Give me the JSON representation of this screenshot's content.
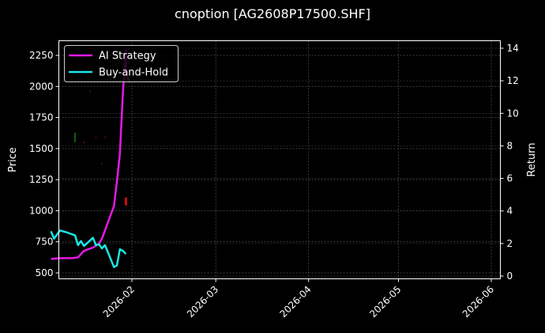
{
  "chart_data": {
    "type": "line",
    "title": "cnoption [AG2608P17500.SHF]",
    "xlabel": "",
    "ylabel_left": "Price",
    "ylabel_right": "Return",
    "x_tick_labels": [
      "2026-02",
      "2026-03",
      "2026-04",
      "2026-05",
      "2026-06"
    ],
    "y_left_ticks": [
      500,
      750,
      1000,
      1250,
      1500,
      1750,
      2000,
      2250
    ],
    "y_right_ticks": [
      0,
      2,
      4,
      6,
      8,
      10,
      12,
      14
    ],
    "ylim_left": [
      460,
      2370
    ],
    "ylim_right": [
      -0.1,
      14.5
    ],
    "grid": true,
    "legend_position": "upper left",
    "legend": [
      "AI Strategy",
      "Buy-and-Hold"
    ],
    "series": [
      {
        "name": "AI Strategy",
        "axis": "right",
        "color": "#e619e6",
        "dates": [
          "2026-01-05",
          "2026-01-08",
          "2026-01-12",
          "2026-01-14",
          "2026-01-16",
          "2026-01-19",
          "2026-01-21",
          "2026-01-22",
          "2026-01-23",
          "2026-01-26",
          "2026-01-27",
          "2026-01-28",
          "2026-01-29",
          "2026-01-30",
          "2026-01-30",
          "2026-01-31"
        ],
        "values": [
          1.05,
          1.1,
          1.1,
          1.15,
          1.55,
          1.75,
          2.0,
          2.3,
          2.8,
          4.3,
          5.8,
          7.5,
          11.3,
          13.9,
          12.5,
          11.9
        ]
      },
      {
        "name": "Buy-and-Hold",
        "axis": "right",
        "color": "#19e6e6",
        "dates": [
          "2026-01-05",
          "2026-01-06",
          "2026-01-08",
          "2026-01-10",
          "2026-01-13",
          "2026-01-14",
          "2026-01-15",
          "2026-01-16",
          "2026-01-19",
          "2026-01-20",
          "2026-01-21",
          "2026-01-22",
          "2026-01-23",
          "2026-01-26",
          "2026-01-27",
          "2026-01-28",
          "2026-01-29",
          "2026-01-30"
        ],
        "values": [
          2.75,
          2.3,
          2.8,
          2.7,
          2.5,
          1.9,
          2.15,
          1.85,
          2.35,
          1.9,
          1.95,
          1.7,
          1.9,
          0.55,
          0.65,
          1.65,
          1.55,
          1.35
        ]
      }
    ],
    "scatter_markers": [
      {
        "label": "buy",
        "color": "#1a7a1a",
        "date": "2026-01-13",
        "price": 1590
      },
      {
        "label": "sell",
        "color": "#cc1111",
        "date": "2026-01-30",
        "price": 1075
      },
      {
        "label": "sell-faint",
        "color": "#551111",
        "date": "2026-01-16",
        "price": 1550
      },
      {
        "label": "sell-faint",
        "color": "#441111",
        "date": "2026-01-18",
        "price": 1960
      },
      {
        "label": "sell-faint",
        "color": "#441111",
        "date": "2026-01-20",
        "price": 1590
      },
      {
        "label": "sell-faint",
        "color": "#441111",
        "date": "2026-01-23",
        "price": 1590
      },
      {
        "label": "sell-faint",
        "color": "#441111",
        "date": "2026-01-22",
        "price": 1380
      }
    ]
  }
}
